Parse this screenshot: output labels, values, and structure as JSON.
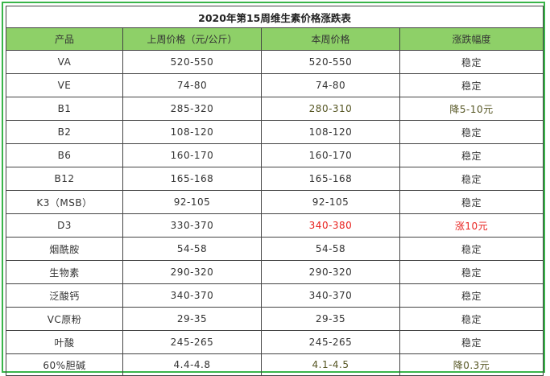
{
  "title": "2020年第15周维生素价格涨跌表",
  "headers": [
    "产品",
    "上周价格（元/公斤）",
    "本周价格",
    "涨跌幅度"
  ],
  "rows": [
    {
      "product": "VA",
      "last_week": "520-550",
      "this_week": "520-550",
      "change": "稳定",
      "style": ""
    },
    {
      "product": "VE",
      "last_week": "74-80",
      "this_week": "74-80",
      "change": "稳定",
      "style": ""
    },
    {
      "product": "B1",
      "last_week": "285-320",
      "this_week": "280-310",
      "change": "降5-10元",
      "style": "olive"
    },
    {
      "product": "B2",
      "last_week": "108-120",
      "this_week": "108-120",
      "change": "稳定",
      "style": ""
    },
    {
      "product": "B6",
      "last_week": "160-170",
      "this_week": "160-170",
      "change": "稳定",
      "style": ""
    },
    {
      "product": "B12",
      "last_week": "165-168",
      "this_week": "165-168",
      "change": "稳定",
      "style": ""
    },
    {
      "product": "K3（MSB）",
      "last_week": "92-105",
      "this_week": "92-105",
      "change": "稳定",
      "style": ""
    },
    {
      "product": "D3",
      "last_week": "330-370",
      "this_week": "340-380",
      "change": "涨10元",
      "style": "red"
    },
    {
      "product": "烟酰胺",
      "last_week": "54-58",
      "this_week": "54-58",
      "change": "稳定",
      "style": ""
    },
    {
      "product": "生物素",
      "last_week": "290-320",
      "this_week": "290-320",
      "change": "稳定",
      "style": ""
    },
    {
      "product": "泛酸钙",
      "last_week": "340-370",
      "this_week": "340-370",
      "change": "稳定",
      "style": ""
    },
    {
      "product": "VC原粉",
      "last_week": "29-35",
      "this_week": "29-35",
      "change": "稳定",
      "style": ""
    },
    {
      "product": "叶酸",
      "last_week": "245-265",
      "this_week": "245-265",
      "change": "稳定",
      "style": ""
    },
    {
      "product": "60%胆碱",
      "last_week": "4.4-4.8",
      "this_week": "4.1-4.5",
      "change": "降0.3元",
      "style": "olive"
    }
  ],
  "colors": {
    "header_bg": "#8ed068",
    "frame": "#39b54a",
    "up": "#e8211d",
    "down": "#555522"
  }
}
